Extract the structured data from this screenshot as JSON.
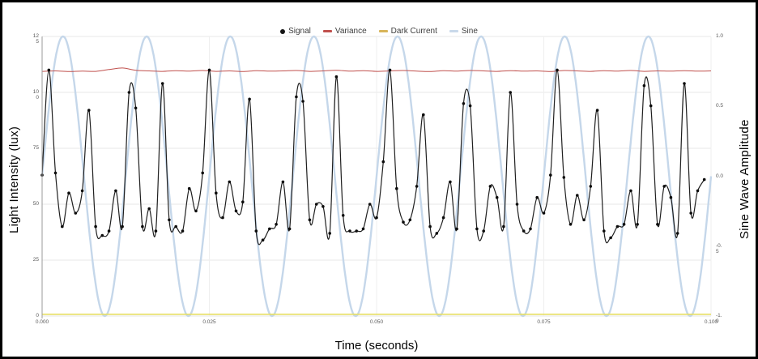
{
  "frame": {
    "background": "#ffffff",
    "border_color": "#000000"
  },
  "legend": {
    "items": [
      {
        "label": "Signal",
        "marker": "dot",
        "color": "#141414"
      },
      {
        "label": "Variance",
        "marker": "dash",
        "color": "#c0504d"
      },
      {
        "label": "Dark Current",
        "marker": "dash",
        "color": "#d8b55a"
      },
      {
        "label": "Sine",
        "marker": "dash",
        "color": "#c9d9ea"
      }
    ]
  },
  "axes": {
    "x_label": "Time (seconds)",
    "y_left_label": "Light Intensity (lux)",
    "y_right_label": "Sine Wave Amplitude"
  },
  "chart_data": {
    "type": "line",
    "title": "",
    "xlabel": "Time (seconds)",
    "ylabel_left": "Light Intensity (lux)",
    "ylabel_right": "Sine Wave Amplitude",
    "x_range_seconds": [
      0,
      0.1
    ],
    "ylim_left": [
      0,
      125
    ],
    "ylim_right": [
      -1.0,
      1.0
    ],
    "x_ticks": [
      "0.000",
      "0.025",
      "0.050",
      "0.075",
      "0.100"
    ],
    "y_ticks_left": [
      "125",
      "100",
      "75",
      "50",
      "25",
      "0"
    ],
    "y_ticks_right": [
      "1.0",
      "0.5",
      "0.0",
      "-0.5",
      "-1.0"
    ],
    "grid": true,
    "legend_position": "top-center",
    "series": [
      {
        "name": "Signal",
        "axis": "left",
        "color": "#1f1f1f",
        "marker": "circle",
        "sample_interval_s": 0.001,
        "values": [
          63,
          110,
          64,
          40,
          55,
          46,
          56,
          92,
          40,
          36,
          38,
          56,
          40,
          100,
          93,
          40,
          48,
          38,
          104,
          43,
          40,
          38,
          57,
          47,
          64,
          110,
          55,
          44,
          60,
          47,
          51,
          97,
          38,
          34,
          39,
          41,
          60,
          39,
          98,
          96,
          43,
          50,
          49,
          37,
          107,
          45,
          38,
          38,
          39,
          50,
          44,
          69,
          110,
          57,
          42,
          43,
          58,
          90,
          40,
          37,
          44,
          60,
          39,
          95,
          94,
          39,
          38,
          58,
          53,
          40,
          100,
          50,
          38,
          39,
          53,
          46,
          63,
          110,
          62,
          41,
          54,
          43,
          58,
          92,
          38,
          35,
          40,
          41,
          56,
          41,
          103,
          94,
          41,
          58,
          53,
          37,
          104,
          46,
          56,
          61
        ]
      },
      {
        "name": "Variance",
        "axis": "left",
        "color": "#c0504d",
        "sample_interval_s": 0.002,
        "values": [
          109.4,
          109.6,
          109.3,
          109.5,
          109.4,
          110.2,
          110.9,
          109.9,
          109.6,
          109.4,
          109.7,
          109.5,
          109.8,
          109.4,
          109.6,
          109.3,
          109.7,
          109.5,
          109.6,
          109.8,
          109.4,
          109.6,
          109.9,
          109.5,
          109.7,
          109.4,
          109.6,
          109.8,
          109.5,
          109.3,
          109.7,
          109.5,
          109.8,
          109.6,
          109.4,
          109.7,
          109.5,
          109.6,
          109.3,
          109.8,
          109.6,
          109.4,
          109.7,
          109.5,
          109.8,
          109.4,
          109.6,
          109.5,
          109.7,
          109.5,
          109.6
        ]
      },
      {
        "name": "Dark Current",
        "axis": "left",
        "color": "#e7df63",
        "constant_value": 0.8
      },
      {
        "name": "Sine",
        "axis": "right",
        "color": "#c5d7ea",
        "waveform": "sine",
        "frequency_hz": 80,
        "amplitude": 1.0
      }
    ]
  }
}
